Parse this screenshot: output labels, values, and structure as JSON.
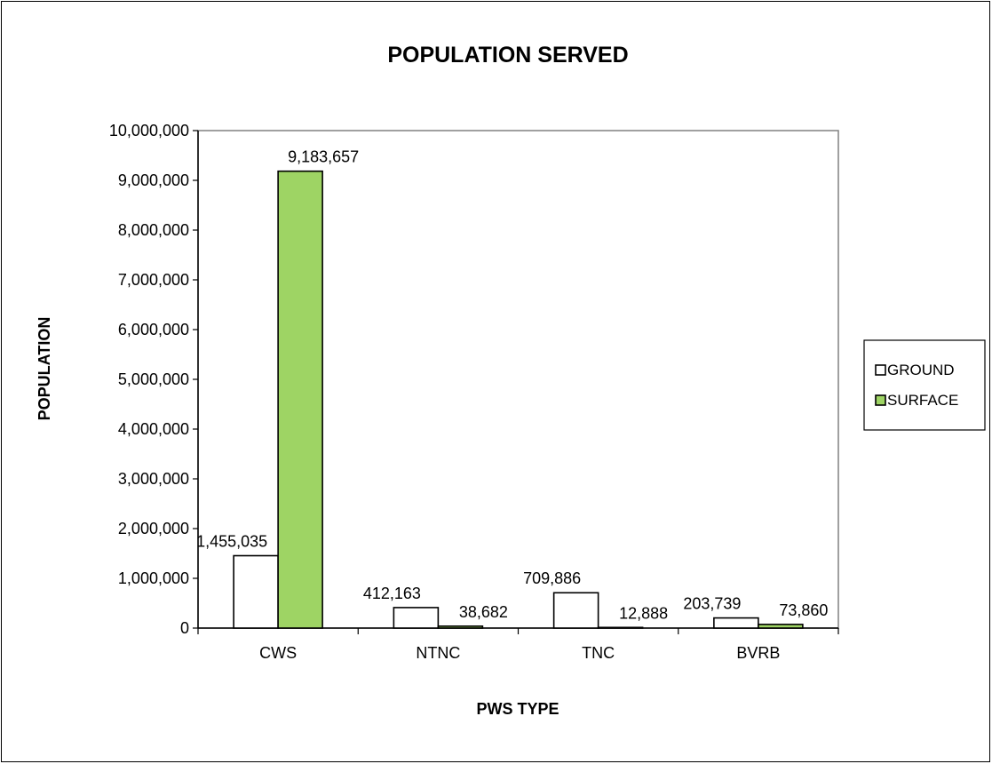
{
  "chart_data": {
    "type": "bar",
    "title": "POPULATION SERVED",
    "xlabel": "PWS TYPE",
    "ylabel": "POPULATION",
    "categories": [
      "CWS",
      "NTNC",
      "TNC",
      "BVRB"
    ],
    "series": [
      {
        "name": "GROUND",
        "color": "#ffffff",
        "values": [
          1455035,
          412163,
          709886,
          203739
        ],
        "labels": [
          "1,455,035",
          "412,163",
          "709,886",
          "203,739"
        ]
      },
      {
        "name": "SURFACE",
        "color": "#9ed464",
        "values": [
          9183657,
          38682,
          12888,
          73860
        ],
        "labels": [
          "9,183,657",
          "38,682",
          "12,888",
          "73,860"
        ]
      }
    ],
    "ylim": [
      0,
      10000000
    ],
    "yticks": [
      0,
      1000000,
      2000000,
      3000000,
      4000000,
      5000000,
      6000000,
      7000000,
      8000000,
      9000000,
      10000000
    ],
    "ytick_labels": [
      "0",
      "1,000,000",
      "2,000,000",
      "3,000,000",
      "4,000,000",
      "5,000,000",
      "6,000,000",
      "7,000,000",
      "8,000,000",
      "9,000,000",
      "10,000,000"
    ],
    "grid": false,
    "legend": "right"
  }
}
